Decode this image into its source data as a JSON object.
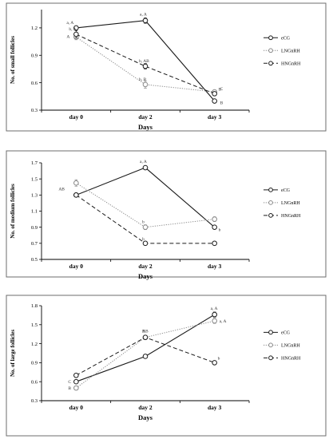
{
  "colors": {
    "eCG": "#1a1a1a",
    "LNGnRH": "#8a8a8a",
    "HNGnRH": "#1a1a1a"
  },
  "chart_data": [
    {
      "type": "line",
      "xlabel": "Days",
      "ylabel": "No. of small follicles",
      "categories": [
        "day 0",
        "day 2",
        "day 3"
      ],
      "ylim": [
        0.3,
        1.4
      ],
      "yticks": [
        "0.3",
        "0.6",
        "0.9",
        "1.2"
      ],
      "legend": "right",
      "series": [
        {
          "name": "eCG",
          "style": "solid",
          "values": [
            1.2,
            1.28,
            0.4
          ],
          "errors": [
            0.02,
            0.03,
            0.02
          ],
          "labels": [
            "a, A",
            "a, A",
            "B"
          ]
        },
        {
          "name": "LNGnRH",
          "style": "dotted",
          "values": [
            1.1,
            0.58,
            0.5
          ],
          "errors": [
            0.03,
            0.04,
            0.02
          ],
          "labels": [
            "A",
            "b, B",
            "C"
          ]
        },
        {
          "name": "HNGnRH",
          "style": "dashed",
          "values": [
            1.13,
            0.78,
            0.48
          ],
          "errors": [
            0.04,
            0.03,
            0.02
          ],
          "labels": [
            "b, A",
            "b, AB",
            "B"
          ]
        }
      ]
    },
    {
      "type": "line",
      "xlabel": "Days",
      "ylabel": "No. of medium follicles",
      "categories": [
        "day 0",
        "day 2",
        "day 3"
      ],
      "ylim": [
        0.5,
        1.7
      ],
      "yticks": [
        "0.5",
        "0.7",
        "0.9",
        "1.1",
        "1.3",
        "1.5",
        "1.7"
      ],
      "legend": "right",
      "series": [
        {
          "name": "eCG",
          "style": "solid",
          "values": [
            1.3,
            1.64,
            0.9
          ],
          "errors": [
            0.02,
            0.02,
            0.02
          ],
          "labels": [
            "AB",
            "a, A",
            "b"
          ]
        },
        {
          "name": "LNGnRH",
          "style": "dotted",
          "values": [
            1.45,
            0.9,
            1.0
          ],
          "errors": [
            0.04,
            0.03,
            0.03
          ],
          "labels": [
            "",
            "b",
            ""
          ]
        },
        {
          "name": "HNGnRH",
          "style": "dashed",
          "values": [
            1.3,
            0.7,
            0.7
          ],
          "errors": [
            0.02,
            0.02,
            0.02
          ],
          "labels": [
            "",
            "b",
            ""
          ]
        }
      ]
    },
    {
      "type": "line",
      "xlabel": "Days",
      "ylabel": "No. of large follicles",
      "categories": [
        "day 0",
        "day 2",
        "day 3"
      ],
      "ylim": [
        0.3,
        1.8
      ],
      "yticks": [
        "0.3",
        "0.6",
        "0.9",
        "1.2",
        "1.5",
        "1.8"
      ],
      "legend": "right",
      "series": [
        {
          "name": "eCG",
          "style": "solid",
          "values": [
            0.6,
            1.0,
            1.66
          ],
          "errors": [
            0.02,
            0.02,
            0.04
          ],
          "labels": [
            "C",
            "",
            "a, A"
          ]
        },
        {
          "name": "LNGnRH",
          "style": "dotted",
          "values": [
            0.5,
            1.3,
            1.56
          ],
          "errors": [
            0.03,
            0.03,
            0.04
          ],
          "labels": [
            "B",
            "B",
            "a, A"
          ]
        },
        {
          "name": "HNGnRH",
          "style": "dashed",
          "values": [
            0.7,
            1.3,
            0.9
          ],
          "errors": [
            0.02,
            0.03,
            0.03
          ],
          "labels": [
            "",
            "AB",
            "b"
          ]
        }
      ]
    }
  ]
}
